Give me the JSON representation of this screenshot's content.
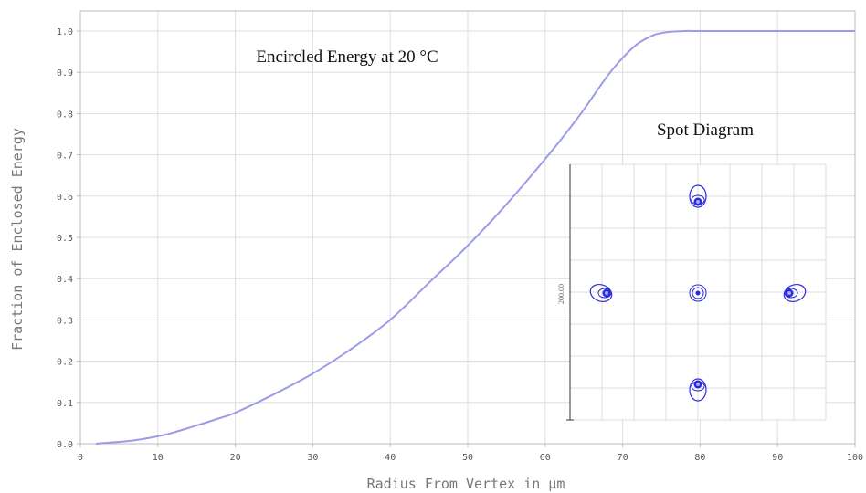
{
  "chart_data": [
    {
      "type": "line",
      "title": "Encircled  Energy  at 20 °C",
      "xlabel": "Radius From Vertex in µm",
      "ylabel": "Fraction of Enclosed Energy",
      "xlim": [
        0,
        100
      ],
      "ylim": [
        0,
        1.0
      ],
      "x_ticks": [
        "0",
        "10",
        "20",
        "30",
        "40",
        "50",
        "60",
        "70",
        "80",
        "90",
        "100"
      ],
      "y_ticks": [
        "0.0",
        "0.1",
        "0.2",
        "0.3",
        "0.4",
        "0.5",
        "0.6",
        "0.7",
        "0.8",
        "0.9",
        "1.0"
      ],
      "grid": true,
      "series": [
        {
          "color": "#9b9bea",
          "x": [
            2,
            4,
            6,
            8,
            10,
            12,
            15,
            18,
            20,
            25,
            30,
            35,
            40,
            45,
            50,
            55,
            60,
            63,
            65,
            68,
            70,
            72,
            74,
            75,
            76,
            78,
            80,
            90,
            100
          ],
          "y": [
            0.0,
            0.003,
            0.006,
            0.011,
            0.018,
            0.027,
            0.044,
            0.062,
            0.075,
            0.12,
            0.17,
            0.23,
            0.3,
            0.39,
            0.48,
            0.58,
            0.69,
            0.76,
            0.81,
            0.89,
            0.935,
            0.97,
            0.99,
            0.995,
            0.998,
            1.0,
            1.0,
            1.0,
            1.0
          ]
        }
      ]
    },
    {
      "type": "scatter",
      "title": "Spot Diagram",
      "ylabel": "200.00",
      "grid": true,
      "series": [
        {
          "color": "#2a2ae0",
          "x": [
            0,
            0,
            -1,
            1,
            0
          ],
          "y": [
            1,
            0,
            0,
            0,
            -1
          ]
        }
      ]
    }
  ],
  "colors": {
    "curve": "#9b9bea",
    "grid": "#dedede",
    "axis": "#bbbbbb",
    "tick_text": "#555555",
    "label_text": "#777777",
    "spot": "#2a2ae0"
  }
}
